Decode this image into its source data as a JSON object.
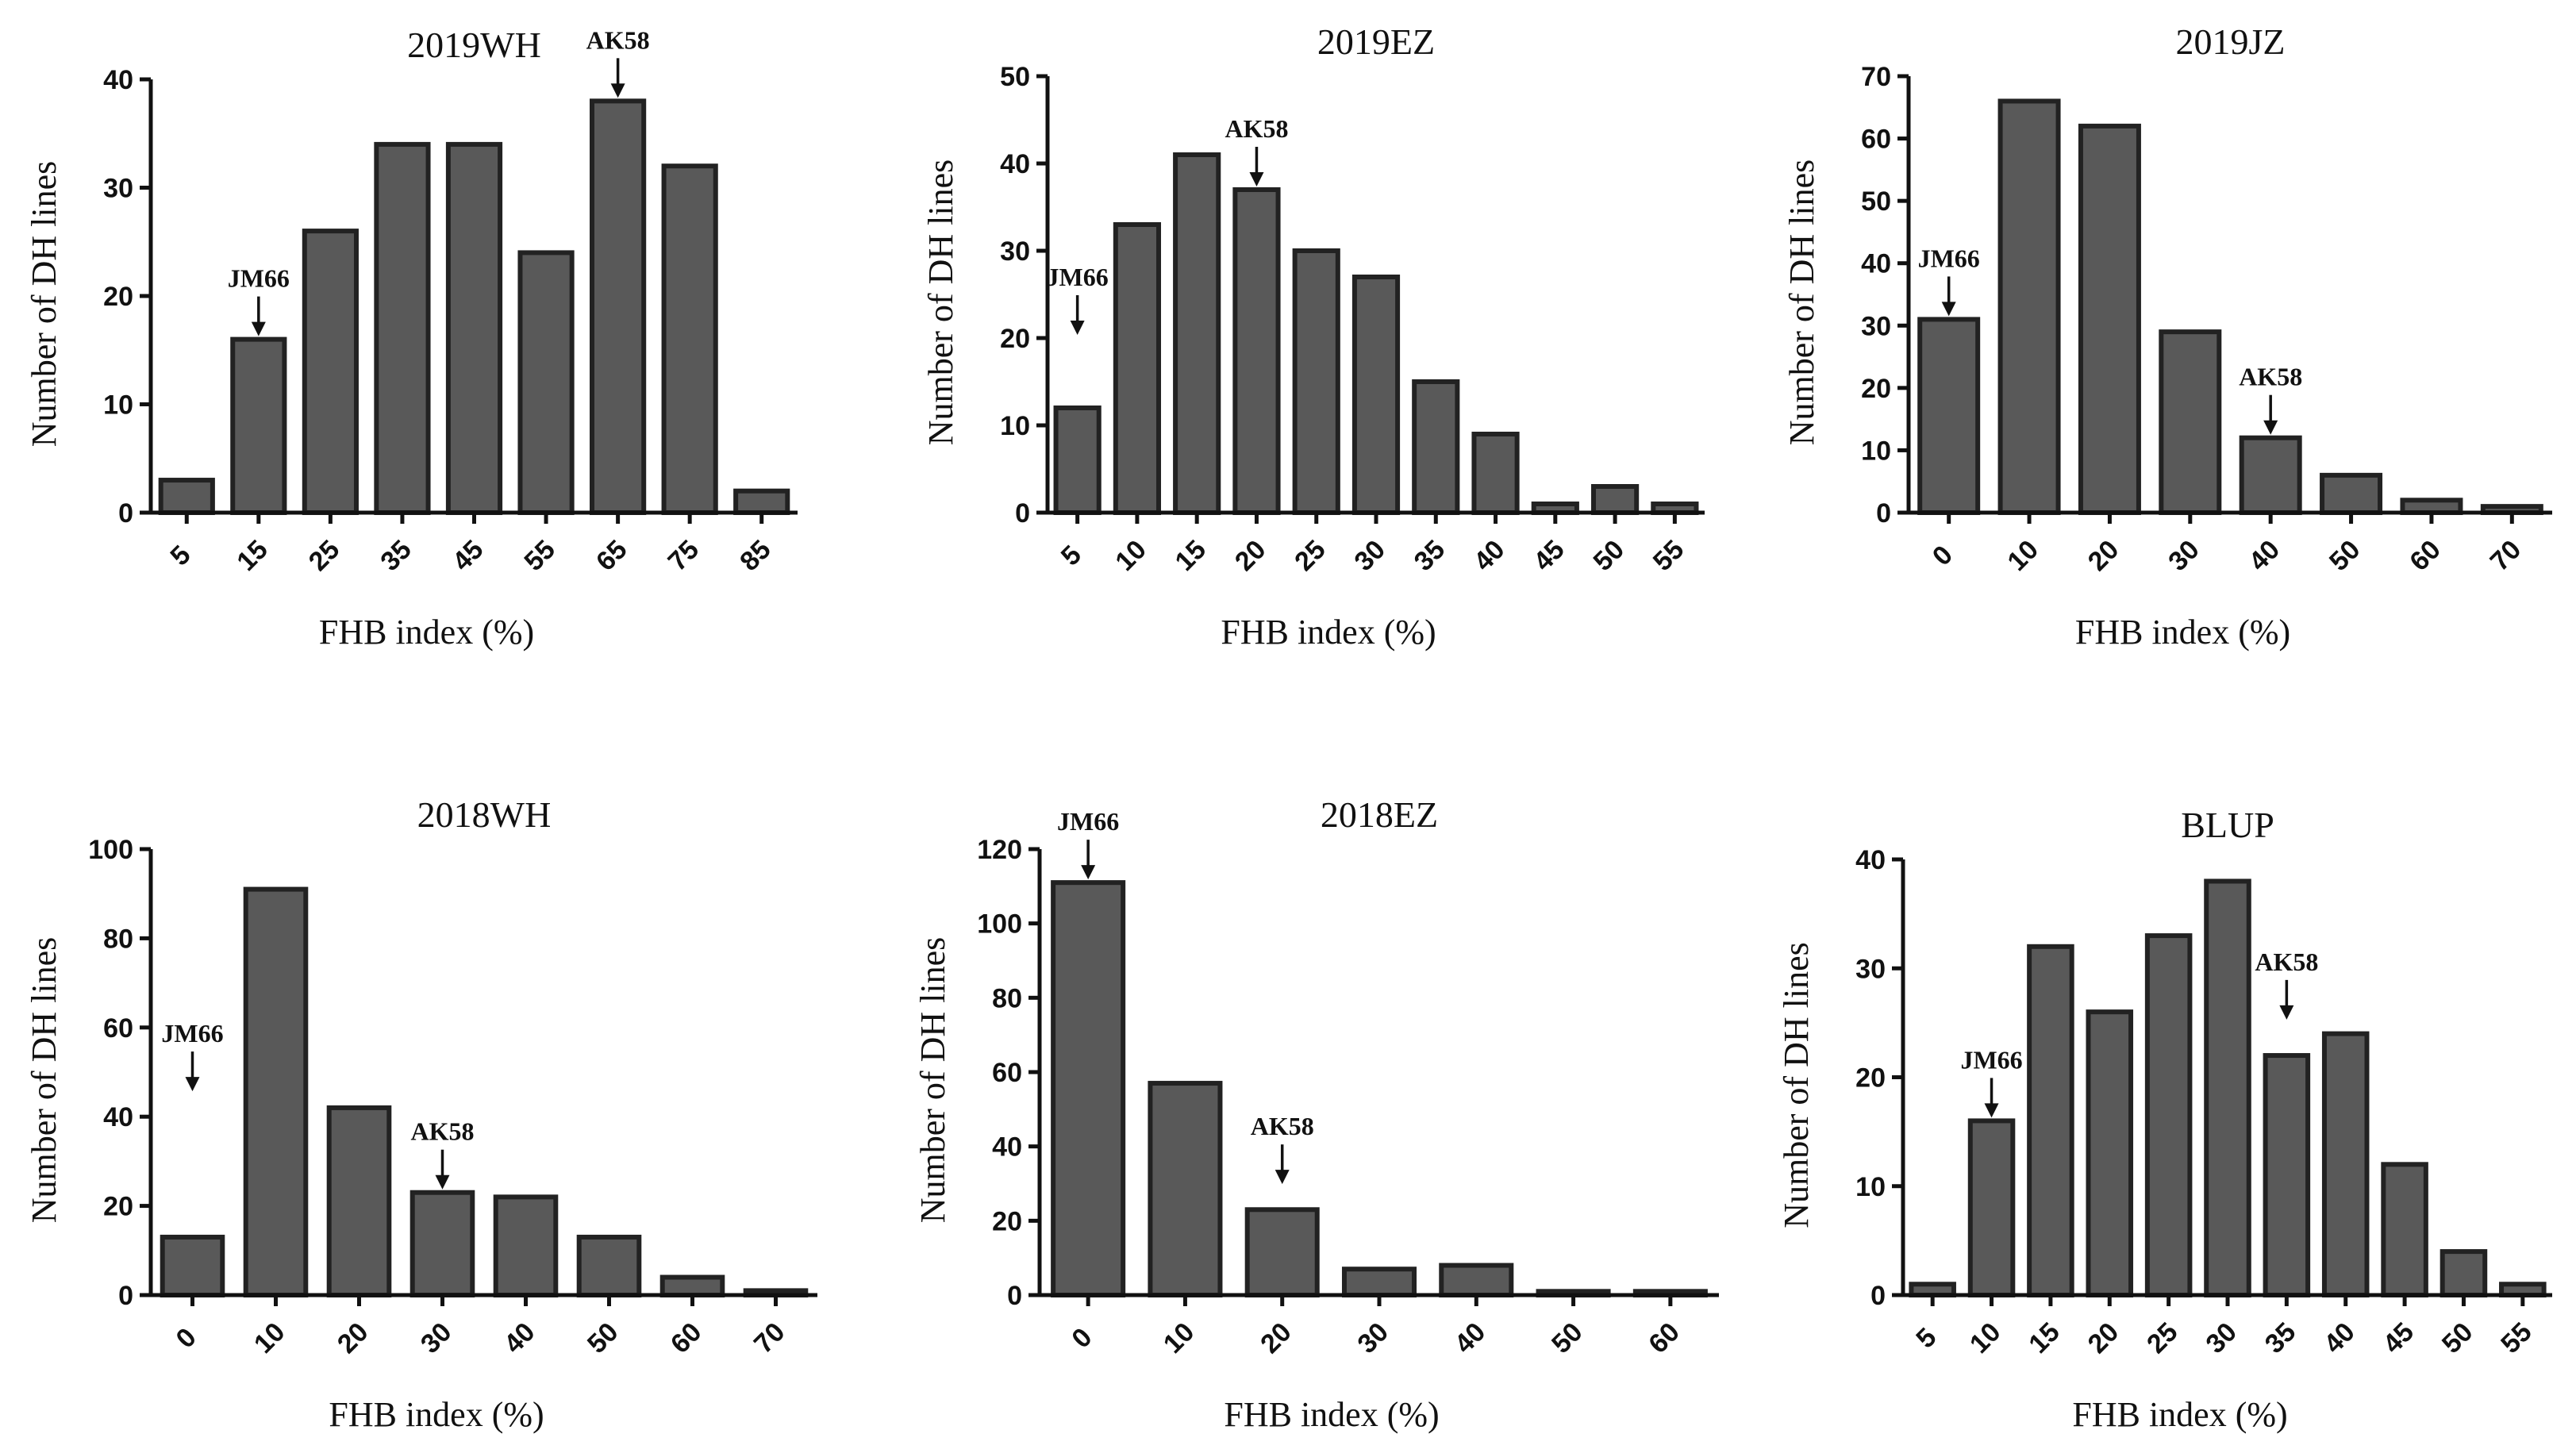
{
  "chart_data": [
    {
      "type": "bar",
      "title": "2019WH",
      "xlabel": "FHB index (%)",
      "ylabel": "Number of DH lines",
      "categories": [
        "5",
        "15",
        "25",
        "35",
        "45",
        "55",
        "65",
        "75",
        "85"
      ],
      "values": [
        3,
        16,
        26,
        34,
        34,
        24,
        38,
        32,
        2
      ],
      "ylim": [
        0,
        40
      ],
      "yticks": [
        0,
        10,
        20,
        30,
        40
      ],
      "annotations": [
        {
          "label": "JM66",
          "category_index": 1,
          "y": 16
        },
        {
          "label": "AK58",
          "category_index": 6,
          "y": 38
        }
      ]
    },
    {
      "type": "bar",
      "title": "2019EZ",
      "xlabel": "FHB index (%)",
      "ylabel": "Number of DH lines",
      "categories": [
        "5",
        "10",
        "15",
        "20",
        "25",
        "30",
        "35",
        "40",
        "45",
        "50",
        "55"
      ],
      "values": [
        12,
        33,
        41,
        37,
        30,
        27,
        15,
        9,
        1,
        3,
        1
      ],
      "ylim": [
        0,
        50
      ],
      "yticks": [
        0,
        10,
        20,
        30,
        40,
        50
      ],
      "annotations": [
        {
          "label": "JM66",
          "category_index": 0,
          "y": 20
        },
        {
          "label": "AK58",
          "category_index": 3,
          "y": 37
        }
      ]
    },
    {
      "type": "bar",
      "title": "2019JZ",
      "xlabel": "FHB index (%)",
      "ylabel": "Number of DH lines",
      "categories": [
        "0",
        "10",
        "20",
        "30",
        "40",
        "50",
        "60",
        "70"
      ],
      "values": [
        31,
        66,
        62,
        29,
        12,
        6,
        2,
        1
      ],
      "ylim": [
        0,
        70
      ],
      "yticks": [
        0,
        10,
        20,
        30,
        40,
        50,
        60,
        70
      ],
      "annotations": [
        {
          "label": "JM66",
          "category_index": 0,
          "y": 31
        },
        {
          "label": "AK58",
          "category_index": 4,
          "y": 12
        }
      ]
    },
    {
      "type": "bar",
      "title": "2018WH",
      "xlabel": "FHB index (%)",
      "ylabel": "Number of DH lines",
      "categories": [
        "0",
        "10",
        "20",
        "30",
        "40",
        "50",
        "60",
        "70"
      ],
      "values": [
        13,
        91,
        42,
        23,
        22,
        13,
        4,
        1
      ],
      "ylim": [
        0,
        100
      ],
      "yticks": [
        0,
        20,
        40,
        60,
        80,
        100
      ],
      "annotations": [
        {
          "label": "JM66",
          "category_index": 0,
          "y": 45
        },
        {
          "label": "AK58",
          "category_index": 3,
          "y": 23
        }
      ]
    },
    {
      "type": "bar",
      "title": "2018EZ",
      "xlabel": "FHB index (%)",
      "ylabel": "Number of DH lines",
      "categories": [
        "0",
        "10",
        "20",
        "30",
        "40",
        "50",
        "60"
      ],
      "values": [
        111,
        57,
        23,
        7,
        8,
        1,
        1
      ],
      "ylim": [
        0,
        120
      ],
      "yticks": [
        0,
        20,
        40,
        60,
        80,
        100,
        120
      ],
      "annotations": [
        {
          "label": "JM66",
          "category_index": 0,
          "y": 111
        },
        {
          "label": "AK58",
          "category_index": 2,
          "y": 29
        }
      ]
    },
    {
      "type": "bar",
      "title": "BLUP",
      "xlabel": "FHB index (%)",
      "ylabel": "Number of DH lines",
      "categories": [
        "5",
        "10",
        "15",
        "20",
        "25",
        "30",
        "35",
        "40",
        "45",
        "50",
        "55"
      ],
      "values": [
        1,
        16,
        32,
        26,
        33,
        38,
        22,
        24,
        12,
        4,
        1
      ],
      "ylim": [
        0,
        40
      ],
      "yticks": [
        0,
        10,
        20,
        30,
        40
      ],
      "annotations": [
        {
          "label": "JM66",
          "category_index": 1,
          "y": 16
        },
        {
          "label": "AK58",
          "category_index": 6,
          "y": 25
        }
      ]
    }
  ]
}
